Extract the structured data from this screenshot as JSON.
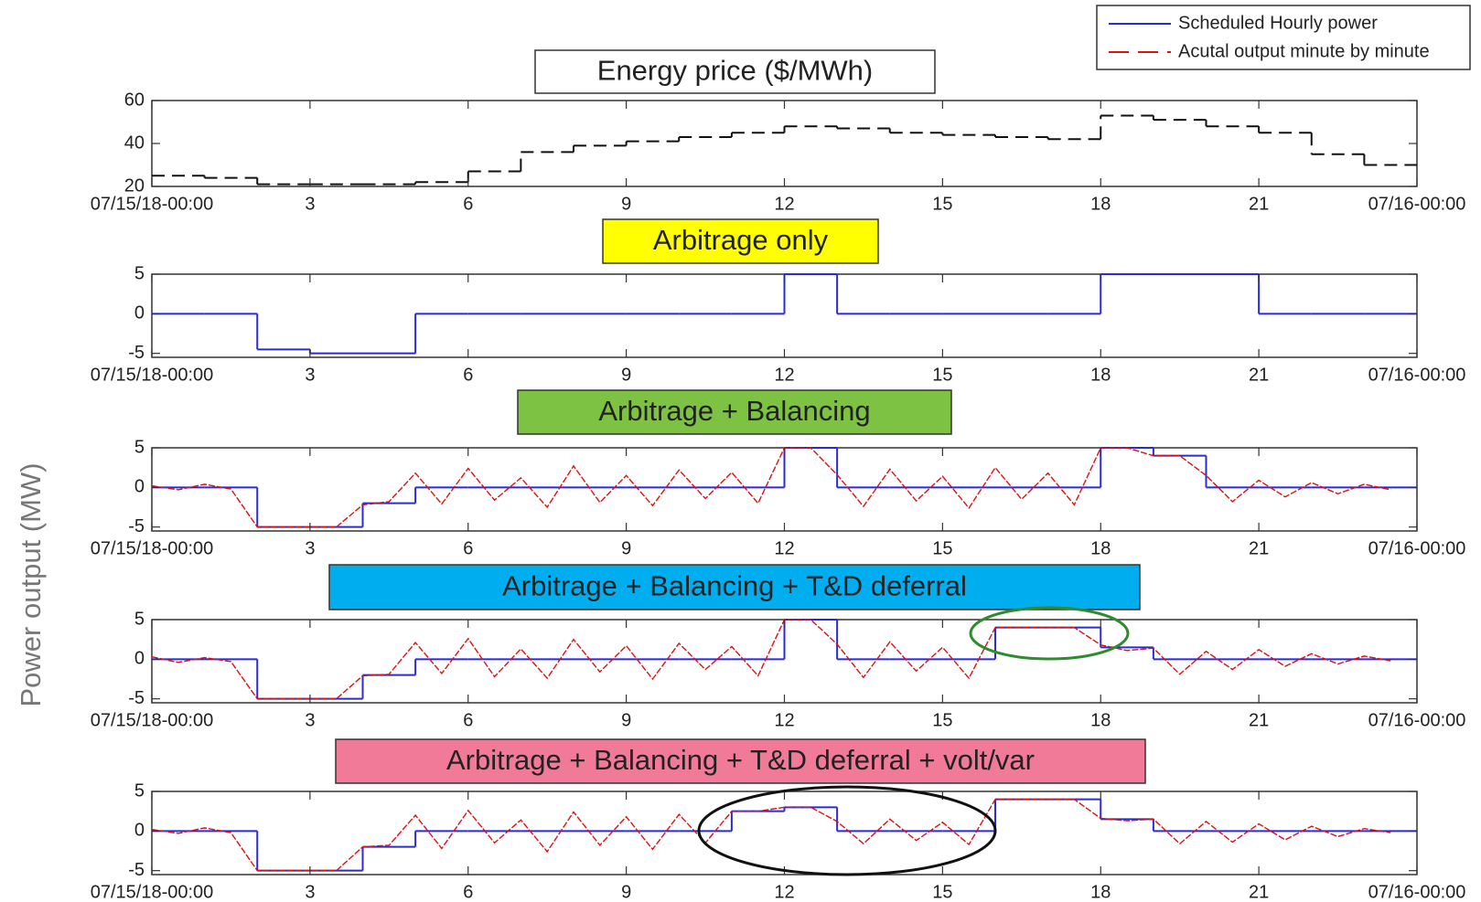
{
  "ylabel": "Power output (MW)",
  "chart_data": [
    {
      "type": "line",
      "title": "Energy price ($/MWh)",
      "title_background": "#ffffff",
      "xlim": [
        0,
        24
      ],
      "ylim": [
        20,
        60
      ],
      "yticks": [
        20,
        40,
        60
      ],
      "xticks": [
        {
          "value": 0,
          "label": "07/15/18-00:00"
        },
        3,
        6,
        9,
        12,
        15,
        18,
        21,
        {
          "value": 24,
          "label": "07/16-00:00"
        }
      ],
      "series": [
        {
          "name": "Energy price",
          "color": "#111111",
          "line_style": "dashed",
          "step": true,
          "x": [
            0,
            1,
            2,
            3,
            4,
            5,
            6,
            7,
            8,
            9,
            10,
            11,
            12,
            13,
            14,
            15,
            16,
            17,
            18,
            19,
            20,
            21,
            22,
            23
          ],
          "values": [
            25,
            24,
            21,
            21,
            21,
            22,
            27,
            36,
            39,
            41,
            43,
            45,
            48,
            47,
            45,
            44,
            43,
            42,
            53,
            51,
            48,
            45,
            35,
            30
          ]
        }
      ]
    },
    {
      "type": "line",
      "title": "Arbitrage only",
      "title_background": "#ffff00",
      "xlim": [
        0,
        24
      ],
      "ylim": [
        -5.5,
        5
      ],
      "yticks": [
        -5,
        0,
        5
      ],
      "xticks": [
        {
          "value": 0,
          "label": "07/15/18-00:00"
        },
        3,
        6,
        9,
        12,
        15,
        18,
        21,
        {
          "value": 24,
          "label": "07/16-00:00"
        }
      ],
      "series": [
        {
          "name": "Scheduled Hourly power",
          "color": "#2b2bd6",
          "line_style": "solid",
          "step": true,
          "x": [
            0,
            1,
            2,
            3,
            4,
            5,
            6,
            7,
            8,
            9,
            10,
            11,
            12,
            13,
            14,
            15,
            16,
            17,
            18,
            19,
            20,
            21,
            22,
            23
          ],
          "values": [
            0,
            0,
            -4.5,
            -5,
            -5,
            0,
            0,
            0,
            0,
            0,
            0,
            0,
            5,
            0,
            0,
            0,
            0,
            0,
            5,
            5,
            5,
            0,
            0,
            0
          ]
        }
      ]
    },
    {
      "type": "line",
      "title": "Arbitrage + Balancing",
      "title_background": "#7dc242",
      "xlim": [
        0,
        24
      ],
      "ylim": [
        -5.5,
        5
      ],
      "yticks": [
        -5,
        0,
        5
      ],
      "xticks": [
        {
          "value": 0,
          "label": "07/15/18-00:00"
        },
        3,
        6,
        9,
        12,
        15,
        18,
        21,
        {
          "value": 24,
          "label": "07/16-00:00"
        }
      ],
      "series": [
        {
          "name": "Scheduled Hourly power",
          "color": "#2b2bd6",
          "line_style": "solid",
          "step": true,
          "x": [
            0,
            1,
            2,
            3,
            4,
            5,
            6,
            7,
            8,
            9,
            10,
            11,
            12,
            13,
            14,
            15,
            16,
            17,
            18,
            19,
            20,
            21,
            22,
            23
          ],
          "values": [
            0,
            0,
            -5,
            -5,
            -2,
            0,
            0,
            0,
            0,
            0,
            0,
            0,
            5,
            0,
            0,
            0,
            0,
            0,
            5,
            4,
            0,
            0,
            0,
            0
          ]
        },
        {
          "name": "Acutal output minute by minute",
          "color": "#e01010",
          "line_style": "dashed",
          "step": false,
          "x": [
            0,
            0.5,
            1,
            1.5,
            2,
            2.5,
            3,
            3.5,
            4,
            4.5,
            5,
            5.5,
            6,
            6.5,
            7,
            7.5,
            8,
            8.5,
            9,
            9.5,
            10,
            10.5,
            11,
            11.5,
            12,
            12.5,
            13,
            13.5,
            14,
            14.5,
            15,
            15.5,
            16,
            16.5,
            17,
            17.5,
            18,
            18.5,
            19,
            19.5,
            20,
            20.5,
            21,
            21.5,
            22,
            22.5,
            23,
            23.5
          ],
          "values": [
            0.2,
            -0.3,
            0.4,
            -0.2,
            -5,
            -5,
            -5,
            -5,
            -2.2,
            -1.8,
            1.8,
            -2.1,
            2.4,
            -1.6,
            1.2,
            -2.5,
            2.7,
            -1.9,
            1.5,
            -2.3,
            2.2,
            -1.4,
            1.9,
            -2.0,
            5,
            5,
            1.6,
            -2.4,
            2.3,
            -1.7,
            1.4,
            -2.6,
            2.5,
            -1.5,
            1.8,
            -2.2,
            5,
            5,
            4,
            4,
            1.5,
            -1.8,
            0.9,
            -1.2,
            0.6,
            -0.8,
            0.4,
            -0.3
          ]
        }
      ]
    },
    {
      "type": "line",
      "title": "Arbitrage + Balancing +  T&D deferral",
      "title_background": "#00aeef",
      "xlim": [
        0,
        24
      ],
      "ylim": [
        -5.5,
        5
      ],
      "yticks": [
        -5,
        0,
        5
      ],
      "xticks": [
        {
          "value": 0,
          "label": "07/15/18-00:00"
        },
        3,
        6,
        9,
        12,
        15,
        18,
        21,
        {
          "value": 24,
          "label": "07/16-00:00"
        }
      ],
      "series": [
        {
          "name": "Scheduled Hourly power",
          "color": "#2b2bd6",
          "line_style": "solid",
          "step": true,
          "x": [
            0,
            1,
            2,
            3,
            4,
            5,
            6,
            7,
            8,
            9,
            10,
            11,
            12,
            13,
            14,
            15,
            16,
            17,
            18,
            19,
            20,
            21,
            22,
            23
          ],
          "values": [
            0,
            0,
            -5,
            -5,
            -2,
            0,
            0,
            0,
            0,
            0,
            0,
            0,
            5,
            0,
            0,
            0,
            4,
            4,
            1.5,
            0,
            0,
            0,
            0,
            0
          ]
        },
        {
          "name": "Acutal output minute by minute",
          "color": "#e01010",
          "line_style": "dashed",
          "step": false,
          "x": [
            0,
            0.5,
            1,
            1.5,
            2,
            2.5,
            3,
            3.5,
            4,
            4.5,
            5,
            5.5,
            6,
            6.5,
            7,
            7.5,
            8,
            8.5,
            9,
            9.5,
            10,
            10.5,
            11,
            11.5,
            12,
            12.5,
            13,
            13.5,
            14,
            14.5,
            15,
            15.5,
            16,
            16.5,
            17,
            17.5,
            18,
            18.5,
            19,
            19.5,
            20,
            20.5,
            21,
            21.5,
            22,
            22.5,
            23,
            23.5
          ],
          "values": [
            0.3,
            -0.4,
            0.2,
            -0.3,
            -5,
            -5,
            -5,
            -5,
            -2.1,
            -1.9,
            2.1,
            -1.8,
            2.6,
            -2.2,
            1.3,
            -2.4,
            2.5,
            -1.6,
            1.7,
            -2.5,
            2.0,
            -1.3,
            1.6,
            -2.1,
            5,
            5,
            1.9,
            -2.3,
            2.2,
            -1.5,
            1.5,
            -2.4,
            4,
            4,
            4,
            4,
            1.8,
            1.1,
            1.4,
            -1.9,
            1.0,
            -1.3,
            1.2,
            -0.9,
            0.7,
            -0.6,
            0.4,
            -0.2
          ]
        }
      ]
    },
    {
      "type": "line",
      "title": "Arbitrage + Balancing +  T&D deferral  + volt/var",
      "title_background": "#f07a98",
      "xlim": [
        0,
        24
      ],
      "ylim": [
        -5.5,
        5
      ],
      "yticks": [
        -5,
        0,
        5
      ],
      "xticks": [
        {
          "value": 0,
          "label": "07/15/18-00:00"
        },
        3,
        6,
        9,
        12,
        15,
        18,
        21,
        {
          "value": 24,
          "label": "07/16-00:00"
        }
      ],
      "series": [
        {
          "name": "Scheduled Hourly power",
          "color": "#2b2bd6",
          "line_style": "solid",
          "step": true,
          "x": [
            0,
            1,
            2,
            3,
            4,
            5,
            6,
            7,
            8,
            9,
            10,
            11,
            12,
            13,
            14,
            15,
            16,
            17,
            18,
            19,
            20,
            21,
            22,
            23
          ],
          "values": [
            0,
            0,
            -5,
            -5,
            -2,
            0,
            0,
            0,
            0,
            0,
            0,
            2.5,
            3,
            0,
            0,
            0,
            4,
            4,
            1.5,
            0,
            0,
            0,
            0,
            0
          ]
        },
        {
          "name": "Acutal output minute by minute",
          "color": "#e01010",
          "line_style": "dashed",
          "step": false,
          "x": [
            0,
            0.5,
            1,
            1.5,
            2,
            2.5,
            3,
            3.5,
            4,
            4.5,
            5,
            5.5,
            6,
            6.5,
            7,
            7.5,
            8,
            8.5,
            9,
            9.5,
            10,
            10.5,
            11,
            11.5,
            12,
            12.5,
            13,
            13.5,
            14,
            14.5,
            15,
            15.5,
            16,
            16.5,
            17,
            17.5,
            18,
            18.5,
            19,
            19.5,
            20,
            20.5,
            21,
            21.5,
            22,
            22.5,
            23,
            23.5
          ],
          "values": [
            0.2,
            -0.3,
            0.4,
            -0.2,
            -5,
            -5,
            -5,
            -5,
            -2,
            -1.8,
            2.0,
            -2.2,
            2.6,
            -1.5,
            1.4,
            -2.6,
            2.4,
            -1.8,
            1.8,
            -2.3,
            2.1,
            -1.5,
            2.5,
            2.5,
            3,
            3,
            1.2,
            -1.6,
            1.5,
            -1.2,
            1.1,
            -1.7,
            4,
            4,
            4,
            4,
            1.6,
            1.3,
            1.5,
            -1.6,
            1.2,
            -1.4,
            0.9,
            -1.1,
            0.6,
            -0.7,
            0.3,
            -0.2
          ]
        }
      ]
    }
  ]
}
